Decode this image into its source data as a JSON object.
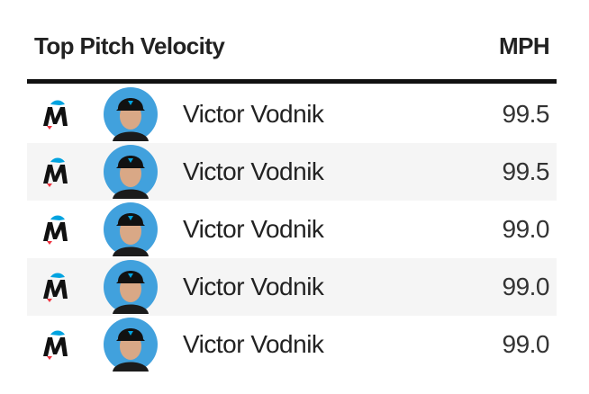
{
  "header": {
    "title": "Top Pitch Velocity",
    "unit": "MPH"
  },
  "table": {
    "rows": [
      [
        "Victor Vodnik",
        "99.5"
      ],
      [
        "Victor Vodnik",
        "99.5"
      ],
      [
        "Victor Vodnik",
        "99.0"
      ],
      [
        "Victor Vodnik",
        "99.0"
      ],
      [
        "Victor Vodnik",
        "99.0"
      ]
    ]
  }
}
